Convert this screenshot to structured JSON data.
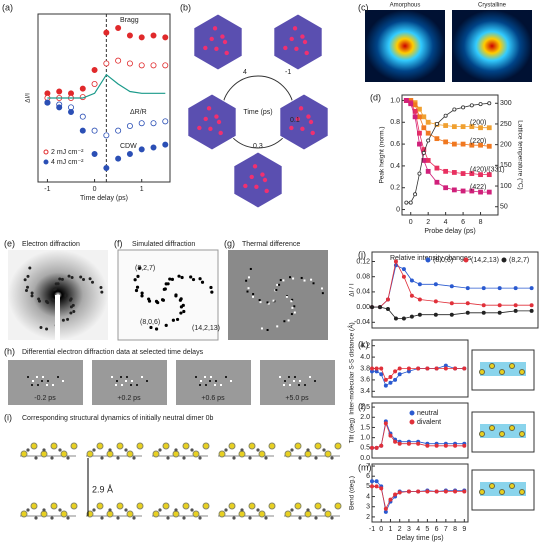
{
  "chart_data": [
    {
      "type": "scatter",
      "panel": "(a)",
      "xlabel": "Time delay (ps)",
      "ylabel": "ΔI/I",
      "xlim": [
        -1.2,
        1.6
      ],
      "ylim": [
        -0.85,
        0.95
      ],
      "xticks": [
        -1,
        0,
        1
      ],
      "legend": "lower left",
      "annotations": [
        "Bragg",
        "ΔR/R",
        "CDW"
      ],
      "x": [
        -1,
        -0.75,
        -0.5,
        -0.25,
        0,
        0.25,
        0.5,
        0.75,
        1,
        1.25,
        1.5
      ],
      "series": [
        {
          "color": "#e0292b",
          "filled": true,
          "values": [
            0.1,
            0.12,
            0.1,
            0.15,
            0.35,
            0.75,
            0.8,
            0.72,
            0.7,
            0.72,
            0.7
          ]
        },
        {
          "name": "2 mJ cm⁻²",
          "color": "#e0292b",
          "filled": false,
          "values": [
            0.05,
            0.05,
            0.05,
            0.06,
            0.2,
            0.42,
            0.45,
            0.42,
            0.4,
            0.4,
            0.4
          ]
        },
        {
          "color": "#1a9a8a",
          "line": true,
          "nomarker": true,
          "values": [
            0.05,
            0.05,
            0.05,
            0.05,
            0.1,
            0.3,
            0.2,
            0.12,
            0.1,
            0.1,
            0.1
          ]
        },
        {
          "color": "#2b4fb5",
          "filled": false,
          "values": [
            0.0,
            -0.02,
            -0.05,
            -0.15,
            -0.3,
            -0.35,
            -0.3,
            -0.25,
            -0.22,
            -0.22,
            -0.2
          ]
        },
        {
          "name": "4 mJ cm⁻²",
          "color": "#2b4fb5",
          "filled": true,
          "values": [
            0.0,
            -0.05,
            -0.1,
            -0.3,
            -0.55,
            -0.7,
            -0.6,
            -0.55,
            -0.5,
            -0.48,
            -0.45
          ]
        }
      ]
    },
    {
      "type": "scatter",
      "panel": "(d)",
      "xlabel": "Probe delay (ps)",
      "ylabel": "Peak height (norm.)",
      "y2label": "Lattice temperature (°C)",
      "xlim": [
        -1,
        10
      ],
      "ylim": [
        -0.05,
        1.05
      ],
      "y2lim": [
        30,
        320
      ],
      "xticks": [
        0,
        2,
        4,
        6,
        8
      ],
      "yticks": [
        0,
        0.2,
        0.4,
        0.6,
        0.8,
        {
          "value": 1,
          "label": "1.0"
        }
      ],
      "y2ticks": [
        50,
        100,
        150,
        200,
        250,
        300
      ],
      "legend": "inline",
      "x": [
        -0.5,
        0,
        0.5,
        1,
        1.5,
        2,
        3,
        4,
        5,
        6,
        7,
        8,
        9
      ],
      "series": [
        {
          "name": "(200)",
          "color": "#f0a030",
          "marker": "square",
          "line": true,
          "values": [
            1,
            1,
            0.98,
            0.92,
            0.85,
            0.8,
            0.78,
            0.77,
            0.76,
            0.76,
            0.76,
            0.75,
            0.75
          ]
        },
        {
          "name": "(220)",
          "color": "#f07820",
          "marker": "square",
          "line": true,
          "values": [
            1,
            1,
            0.96,
            0.85,
            0.75,
            0.7,
            0.65,
            0.62,
            0.6,
            0.6,
            0.59,
            0.59,
            0.58
          ]
        },
        {
          "name": "(420)/(331)",
          "color": "#e83060",
          "marker": "square",
          "line": true,
          "values": [
            1,
            0.98,
            0.9,
            0.7,
            0.55,
            0.45,
            0.38,
            0.35,
            0.34,
            0.33,
            0.33,
            0.32,
            0.32
          ]
        },
        {
          "name": "(422)",
          "color": "#d0207a",
          "marker": "square",
          "line": true,
          "values": [
            1,
            0.97,
            0.85,
            0.6,
            0.45,
            0.35,
            0.25,
            0.2,
            0.18,
            0.17,
            0.17,
            0.16,
            0.16
          ]
        },
        {
          "color": "#333333",
          "filled": false,
          "line": true,
          "axis": "y2",
          "values": [
            60,
            60,
            80,
            130,
            180,
            210,
            250,
            270,
            285,
            290,
            295,
            298,
            300
          ]
        }
      ]
    },
    {
      "type": "line",
      "panel": "(j)",
      "title": "Relative intensity changes",
      "ylabel": "ΔI / I",
      "xlim": [
        -1,
        9.4
      ],
      "ylim": [
        -0.055,
        0.145
      ],
      "yticks": [
        -0.04,
        {
          "value": 0,
          "label": "0.00"
        },
        0.04,
        0.08,
        0.12
      ],
      "legend": "upper right",
      "x": [
        -1,
        -0.5,
        0,
        0.5,
        1,
        1.5,
        2,
        3,
        4,
        5,
        6,
        7,
        8,
        9
      ],
      "series": [
        {
          "name": "(8,0,6)",
          "color": "#2a5ad0",
          "line": true,
          "values": [
            0,
            0,
            0.02,
            0.11,
            0.1,
            0.07,
            0.06,
            0.06,
            0.055,
            0.05,
            0.05,
            0.05,
            0.05,
            0.05
          ]
        },
        {
          "name": "(14,2,13)",
          "color": "#e0303a",
          "line": true,
          "values": [
            0,
            0,
            0.02,
            0.12,
            0.08,
            0.03,
            0.02,
            0.015,
            0.01,
            0.01,
            0.005,
            0.005,
            0.005,
            0.005
          ]
        },
        {
          "name": "(8,2,7)",
          "color": "#222222",
          "line": true,
          "values": [
            0,
            0,
            -0.005,
            -0.03,
            -0.03,
            -0.025,
            -0.02,
            -0.02,
            -0.02,
            -0.015,
            -0.015,
            -0.015,
            -0.01,
            -0.01
          ]
        }
      ]
    },
    {
      "type": "scatter",
      "panel": "(k)",
      "ylabel": "Inter-molecular S-S distance (Å)",
      "xlim": [
        -1,
        9.4
      ],
      "ylim": [
        3.3,
        4.3
      ],
      "yticks": [
        3.4,
        3.6,
        3.8,
        {
          "value": 4,
          "label": "4.0"
        },
        4.2
      ],
      "x": [
        -1,
        -0.5,
        0,
        0.5,
        1,
        1.5,
        2,
        3,
        4,
        5,
        6,
        7,
        8,
        9
      ],
      "series": [
        {
          "color": "#2a5ad0",
          "line": true,
          "values": [
            3.75,
            3.75,
            3.7,
            3.5,
            3.55,
            3.6,
            3.7,
            3.75,
            3.8,
            3.8,
            3.8,
            3.85,
            3.8,
            3.8
          ]
        },
        {
          "color": "#e0303a",
          "line": true,
          "values": [
            3.8,
            3.8,
            3.8,
            3.6,
            3.65,
            3.75,
            3.8,
            3.8,
            3.8,
            3.8,
            3.8,
            3.8,
            3.8,
            3.8
          ]
        }
      ]
    },
    {
      "type": "scatter",
      "panel": "(l)",
      "ylabel": "Tilt (deg)",
      "xlim": [
        -1,
        9.4
      ],
      "ylim": [
        0,
        2.7
      ],
      "yticks": [
        {
          "value": 0,
          "label": "0.0"
        },
        0.5,
        {
          "value": 1,
          "label": "1.0"
        },
        1.5,
        {
          "value": 2,
          "label": "2.0"
        },
        2.5
      ],
      "legend": "upper center",
      "x": [
        -1,
        -0.5,
        0,
        0.5,
        1,
        1.5,
        2,
        3,
        4,
        5,
        6,
        7,
        8,
        9
      ],
      "series": [
        {
          "name": "neutral",
          "color": "#2a5ad0",
          "line": true,
          "values": [
            0.5,
            0.5,
            0.6,
            1.8,
            1.2,
            0.9,
            0.8,
            0.8,
            0.8,
            0.7,
            0.7,
            0.7,
            0.7,
            0.7
          ]
        },
        {
          "name": "divalent",
          "color": "#e0303a",
          "line": true,
          "values": [
            0.5,
            0.5,
            0.6,
            1.7,
            1.1,
            0.8,
            0.7,
            0.7,
            0.7,
            0.6,
            0.6,
            0.6,
            0.6,
            0.6
          ]
        }
      ]
    },
    {
      "type": "scatter",
      "panel": "(m)",
      "ylabel": "Bend (deg.)",
      "xlabel": "Delay time (ps)",
      "xlim": [
        -1,
        9.4
      ],
      "ylim": [
        1.5,
        7.2
      ],
      "yticks": [
        2,
        3,
        4,
        5,
        6,
        7
      ],
      "xticks": [
        -1,
        0,
        1,
        2,
        3,
        4,
        5,
        6,
        7,
        8,
        9
      ],
      "x": [
        -1,
        -0.5,
        0,
        0.5,
        1,
        1.5,
        2,
        3,
        4,
        5,
        6,
        7,
        8,
        9
      ],
      "series": [
        {
          "color": "#2a5ad0",
          "line": true,
          "values": [
            5.5,
            5.5,
            5,
            2.5,
            3.5,
            4,
            4.5,
            4.5,
            4.5,
            4.6,
            4.5,
            4.6,
            4.6,
            4.6
          ]
        },
        {
          "color": "#e0303a",
          "line": true,
          "values": [
            5,
            5,
            4.8,
            2.8,
            3.7,
            4.2,
            4.4,
            4.5,
            4.5,
            4.5,
            4.5,
            4.5,
            4.5,
            4.5
          ]
        }
      ]
    }
  ],
  "figure": {
    "b": {
      "panel": "(b)",
      "center": "Time (ps)",
      "times": [
        "4",
        "-1",
        "0.1",
        "0.3"
      ]
    },
    "c": {
      "panel": "(c)",
      "left": "Amorphous",
      "right": "Crystalline"
    },
    "e": {
      "panel": "(e)",
      "title": "Electron diffraction"
    },
    "f": {
      "panel": "(f)",
      "title": "Simulated diffraction",
      "spots": [
        "(8,2,7)",
        "(8,0,6)",
        "(14,2,13)"
      ]
    },
    "g": {
      "panel": "(g)",
      "title": "Thermal difference"
    },
    "h": {
      "panel": "(h)",
      "title": "Differential electron diffraction data at selected time delays",
      "delays": [
        "-0.2 ps",
        "+0.2 ps",
        "+0.6 ps",
        "+5.0 ps"
      ]
    },
    "i": {
      "panel": "(i)",
      "title": "Corresponding structural dynamics of initially neutral dimer 0b",
      "distance": "2.9 Å"
    }
  }
}
